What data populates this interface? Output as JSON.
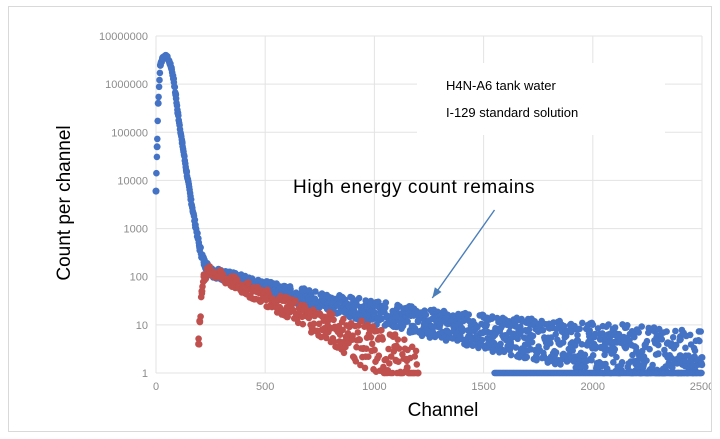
{
  "chart_data": {
    "type": "scatter",
    "title": "",
    "xlabel": "Channel",
    "ylabel": "Count per channel",
    "xlim": [
      0,
      2500
    ],
    "ylim": [
      1,
      10000000
    ],
    "yscale": "log",
    "grid": true,
    "x_ticks": [
      "0",
      "500",
      "1000",
      "1500",
      "2000",
      "2500"
    ],
    "y_ticks": [
      "1",
      "10",
      "100",
      "1000",
      "10000",
      "100000",
      "1000000",
      "10000000"
    ],
    "legend": {
      "placement": "top-right",
      "entries": [
        "H4N-A6 tank water",
        "I-129 standard solution"
      ]
    },
    "annotation": {
      "text": "High energy count remains",
      "arrow_from": [
        1550,
        3
      ],
      "arrow_to": [
        1265,
        1.5
      ]
    },
    "series": [
      {
        "name": "H4N-A6 tank water",
        "color": "#4472c4",
        "points": [
          [
            0,
            6000
          ],
          [
            5,
            50000
          ],
          [
            10,
            400000
          ],
          [
            20,
            2500000
          ],
          [
            30,
            3500000
          ],
          [
            40,
            3800000
          ],
          [
            50,
            3700000
          ],
          [
            60,
            3000000
          ],
          [
            70,
            2200000
          ],
          [
            80,
            1300000
          ],
          [
            90,
            600000
          ],
          [
            100,
            250000
          ],
          [
            120,
            60000
          ],
          [
            140,
            15000
          ],
          [
            160,
            4000
          ],
          [
            180,
            1200
          ],
          [
            200,
            400
          ],
          [
            220,
            200
          ],
          [
            250,
            130
          ],
          [
            300,
            110
          ],
          [
            400,
            80
          ],
          [
            500,
            60
          ],
          [
            600,
            45
          ],
          [
            700,
            36
          ],
          [
            800,
            29
          ],
          [
            900,
            23
          ],
          [
            1000,
            18
          ],
          [
            1100,
            15
          ],
          [
            1200,
            12
          ],
          [
            1300,
            10
          ],
          [
            1400,
            8.5
          ],
          [
            1500,
            7
          ],
          [
            1600,
            6
          ],
          [
            1700,
            5.2
          ],
          [
            1800,
            4.5
          ],
          [
            1900,
            4
          ],
          [
            2000,
            3.5
          ],
          [
            2100,
            3.1
          ],
          [
            2200,
            2.8
          ],
          [
            2300,
            2.5
          ],
          [
            2400,
            2.3
          ],
          [
            2500,
            2.1
          ]
        ]
      },
      {
        "name": "I-129 standard solution",
        "color": "#c0504d",
        "points": [
          [
            195,
            4
          ],
          [
            200,
            12
          ],
          [
            210,
            50
          ],
          [
            220,
            100
          ],
          [
            240,
            130
          ],
          [
            260,
            125
          ],
          [
            300,
            100
          ],
          [
            400,
            60
          ],
          [
            500,
            37
          ],
          [
            600,
            23
          ],
          [
            700,
            14
          ],
          [
            800,
            8.5
          ],
          [
            900,
            5
          ],
          [
            1000,
            3
          ],
          [
            1100,
            1.8
          ],
          [
            1150,
            1.3
          ],
          [
            1200,
            1
          ]
        ]
      }
    ]
  }
}
